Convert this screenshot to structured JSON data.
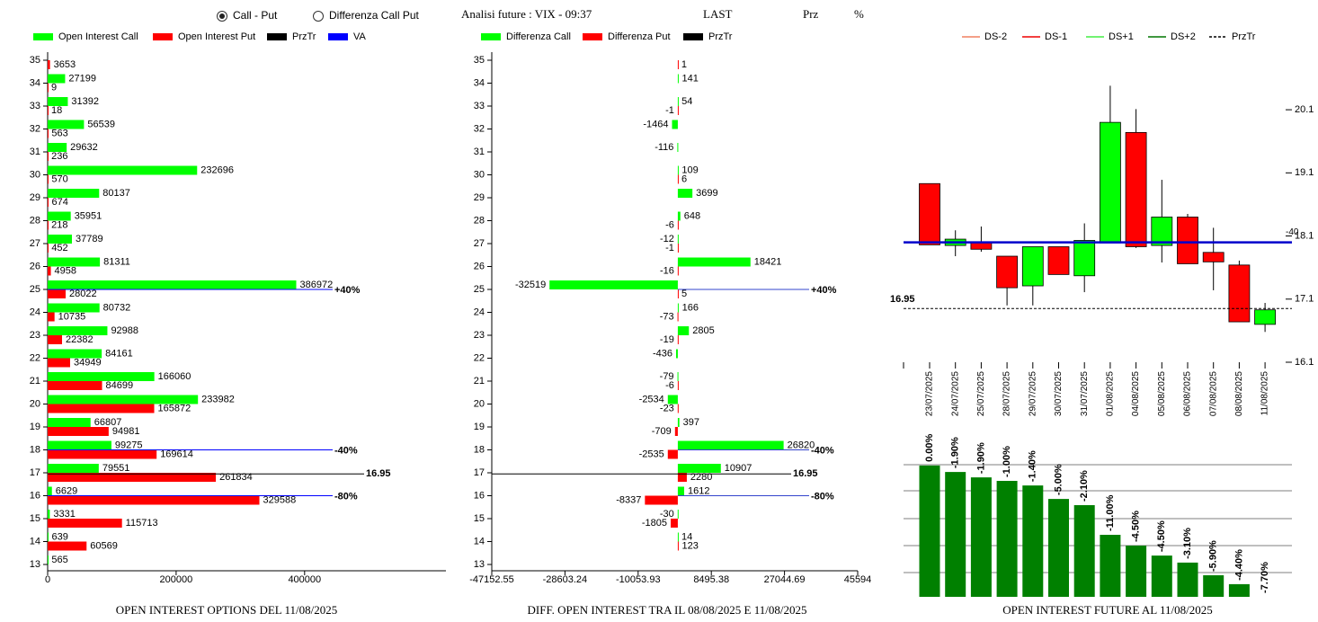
{
  "header": {
    "options": [
      {
        "label": "Call - Put",
        "checked": true
      },
      {
        "label": "Differenza Call Put",
        "checked": false
      }
    ],
    "title": "Analisi future : VIX - 09:37",
    "columns": [
      "LAST",
      "Prz",
      "%"
    ]
  },
  "chart_data": [
    {
      "type": "hbar",
      "title": "OPEN INTEREST OPTIONS DEL 11/08/2025",
      "strikes": [
        13,
        14,
        15,
        16,
        17,
        18,
        19,
        20,
        21,
        22,
        23,
        24,
        25,
        26,
        27,
        28,
        29,
        30,
        31,
        32,
        33,
        34,
        35
      ],
      "series": [
        {
          "name": "Open Interest Call",
          "color": "#00ff00",
          "values": [
            565,
            639,
            3331,
            6629,
            79551,
            99275,
            66807,
            233982,
            166060,
            84161,
            92988,
            80732,
            386972,
            81311,
            37789,
            35951,
            80137,
            232696,
            29632,
            56539,
            31392,
            27199,
            null
          ]
        },
        {
          "name": "Open Interest Put",
          "color": "#ff0000",
          "values": [
            null,
            60569,
            115713,
            329588,
            261834,
            169614,
            94981,
            165872,
            84699,
            34949,
            22382,
            10735,
            28022,
            4958,
            452,
            218,
            674,
            570,
            236,
            563,
            18,
            9,
            3653
          ]
        }
      ],
      "ylim": [
        13,
        35
      ],
      "yticks": [
        13,
        14,
        15,
        16,
        17,
        18,
        19,
        20,
        21,
        22,
        23,
        24,
        25,
        26,
        27,
        28,
        29,
        30,
        31,
        32,
        33,
        34,
        35
      ],
      "xlim": [
        0,
        620000
      ],
      "xticks": [
        0,
        200000,
        400000
      ],
      "przTr": {
        "name": "PrzTr",
        "color": "#000000",
        "value": 16.95
      },
      "va": {
        "name": "VA",
        "color": "#0000ff",
        "lines": [
          {
            "value": 25,
            "label": "+40%"
          },
          {
            "value": 18,
            "label": "-40%"
          },
          {
            "value": 16,
            "label": "-80%"
          }
        ]
      }
    },
    {
      "type": "hbar",
      "title": "DIFF. OPEN INTEREST TRA IL 08/08/2025 E 11/08/2025",
      "strikes": [
        13,
        14,
        15,
        16,
        17,
        18,
        19,
        20,
        21,
        22,
        23,
        24,
        25,
        26,
        27,
        28,
        29,
        30,
        31,
        32,
        33,
        34,
        35
      ],
      "series": [
        {
          "name": "Differenza Call",
          "color": "#00ff00",
          "values": [
            null,
            14,
            -30,
            1612,
            10907,
            26820,
            397,
            -2534,
            -79,
            -436,
            2805,
            166,
            -32519,
            18421,
            -12,
            648,
            3699,
            109,
            -116,
            -1464,
            54,
            141,
            null
          ]
        },
        {
          "name": "Differenza Put",
          "color": "#ff0000",
          "values": [
            null,
            123,
            -1805,
            -8337,
            2280,
            -2535,
            -709,
            -23,
            -6,
            null,
            -19,
            -73,
            5,
            -16,
            -1,
            -6,
            null,
            6,
            null,
            null,
            -1,
            null,
            1
          ]
        }
      ],
      "ylim": [
        13,
        35
      ],
      "yticks": [
        13,
        14,
        15,
        16,
        17,
        18,
        19,
        20,
        21,
        22,
        23,
        24,
        25,
        26,
        27,
        28,
        29,
        30,
        31,
        32,
        33,
        34,
        35
      ],
      "xlim": [
        -47152.55,
        45594
      ],
      "xticks": [
        -47152.55,
        -28603.24,
        -10053.93,
        8495.38,
        27044.69,
        45594
      ],
      "przTr": {
        "name": "PrzTr",
        "color": "#000000",
        "value": 16.95
      },
      "va": {
        "color": "#3344cc",
        "lines": [
          {
            "value": 25,
            "label": "+40%"
          },
          {
            "value": 18,
            "label": "-40%"
          },
          {
            "value": 16,
            "label": "-80%"
          }
        ]
      }
    },
    {
      "type": "candlestick",
      "title": "OPEN INTEREST FUTURE AL 11/08/2025",
      "legend": [
        {
          "name": "DS-2",
          "color": "#f08060"
        },
        {
          "name": "DS-1",
          "color": "#ee0000"
        },
        {
          "name": "DS+1",
          "color": "#44ee44"
        },
        {
          "name": "DS+2",
          "color": "#007700"
        },
        {
          "name": "PrzTr",
          "color": "#000000",
          "dashed": true
        }
      ],
      "x": [
        "23/07/2025",
        "24/07/2025",
        "25/07/2025",
        "28/07/2025",
        "29/07/2025",
        "30/07/2025",
        "31/07/2025",
        "01/08/2025",
        "04/08/2025",
        "05/08/2025",
        "06/08/2025",
        "07/08/2025",
        "08/08/2025",
        "11/08/2025"
      ],
      "open": [
        18.93,
        17.95,
        18.0,
        17.78,
        17.31,
        17.93,
        17.47,
        17.99,
        19.74,
        17.95,
        18.4,
        17.84,
        17.64,
        16.7
      ],
      "high": [
        18.93,
        18.19,
        18.25,
        17.78,
        17.93,
        17.93,
        18.3,
        20.48,
        20.11,
        18.99,
        18.45,
        18.23,
        17.71,
        17.04
      ],
      "low": [
        17.96,
        17.78,
        17.85,
        17.0,
        17.0,
        17.49,
        17.21,
        17.99,
        17.91,
        17.68,
        17.66,
        17.24,
        16.74,
        16.58
      ],
      "close": [
        17.96,
        18.05,
        17.89,
        17.28,
        17.93,
        17.49,
        18.03,
        19.9,
        17.93,
        18.4,
        17.66,
        17.69,
        16.74,
        16.93
      ],
      "up_color": "#00ff00",
      "down_color": "#ff0000",
      "ylim": [
        16.1,
        20.5
      ],
      "yticks": [
        16.1,
        17.1,
        18.1,
        19.1,
        20.1
      ],
      "przTr": 16.95,
      "va": {
        "value": 18.0,
        "label": "-40",
        "color": "#0000cc"
      }
    },
    {
      "type": "bar",
      "values": [
        4.87,
        4.63,
        4.43,
        4.3,
        4.13,
        3.63,
        3.4,
        2.3,
        1.9,
        1.53,
        1.27,
        0.8,
        0.47,
        0
      ],
      "labels": [
        "0.00%",
        "-1.90%",
        "-1.90%",
        "-1.00%",
        "-1.40%",
        "-5.00%",
        "-2.10%",
        "-11.00%",
        "-4.50%",
        "-4.50%",
        "-3.10%",
        "-5.90%",
        "-4.40%",
        "-7.70%"
      ],
      "color": "#008000",
      "ylim": [
        0,
        5
      ]
    }
  ]
}
